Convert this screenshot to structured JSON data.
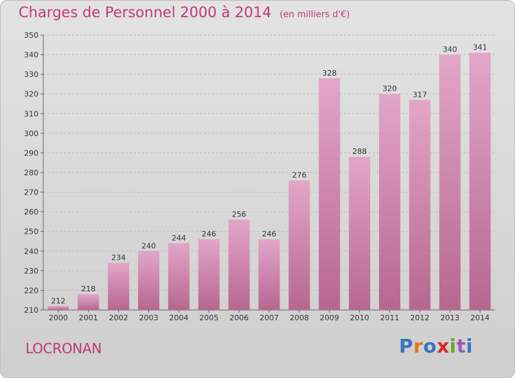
{
  "header": {
    "title": "Charges de Personnel 2000 à 2014",
    "subtitle": "(en milliers d'€)"
  },
  "footer": {
    "commune": "LOCRONAN",
    "logo_text": "Proxiti",
    "logo_colors": [
      "#3a74c4",
      "#e8731e",
      "#3a74c4",
      "#d6262c",
      "#6aa82c",
      "#9b59b6",
      "#3a74c4"
    ]
  },
  "chart_data": {
    "type": "bar",
    "title": "Charges de Personnel 2000 à 2014",
    "subtitle": "(en milliers d'€)",
    "categories": [
      "2000",
      "2001",
      "2002",
      "2003",
      "2004",
      "2005",
      "2006",
      "2007",
      "2008",
      "2009",
      "2010",
      "2011",
      "2012",
      "2013",
      "2014"
    ],
    "values": [
      212,
      218,
      234,
      240,
      244,
      246,
      256,
      246,
      276,
      328,
      288,
      320,
      317,
      340,
      341
    ],
    "ylim": [
      210,
      350
    ],
    "yticks": [
      210,
      220,
      230,
      240,
      250,
      260,
      270,
      280,
      290,
      300,
      310,
      320,
      330,
      340,
      350
    ],
    "grid": true,
    "bar_color_top": "#e2a6c8",
    "bar_color_bottom": "#b7678f",
    "grid_color": "#bcbcbc"
  }
}
